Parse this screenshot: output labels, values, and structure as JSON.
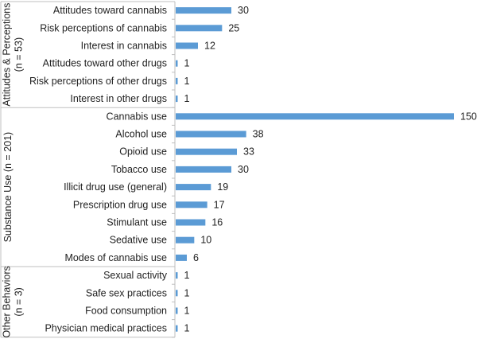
{
  "chart_data": {
    "type": "bar",
    "orientation": "horizontal",
    "title": "",
    "xlabel": "",
    "ylabel": "",
    "xlim": [
      0,
      150
    ],
    "grid": false,
    "legend": "none",
    "bar_color": "#5b9bd5",
    "groups": [
      {
        "label_lines": [
          "Attitudes & Perceptions",
          "(n = 53)"
        ],
        "categories": [
          "Attitudes toward cannabis",
          "Risk perceptions of cannabis",
          "Interest in cannabis",
          "Attitudes toward other drugs",
          "Risk perceptions of other drugs",
          "Interest in other drugs"
        ],
        "values": [
          30,
          25,
          12,
          1,
          1,
          1
        ]
      },
      {
        "label_lines": [
          "Substance Use (n = 201)"
        ],
        "categories": [
          "Cannabis use",
          "Alcohol use",
          "Opioid use",
          "Tobacco use",
          "Illicit drug use (general)",
          "Prescription drug use",
          "Stimulant use",
          "Sedative use",
          "Modes of cannabis use"
        ],
        "values": [
          150,
          38,
          33,
          30,
          19,
          17,
          16,
          10,
          6
        ]
      },
      {
        "label_lines": [
          "Other Behaviors",
          "(n = 3)"
        ],
        "categories": [
          "Sexual activity",
          "Safe sex practices",
          "Food consumption",
          "Physician medical practices"
        ],
        "values": [
          1,
          1,
          1,
          1
        ]
      }
    ]
  }
}
